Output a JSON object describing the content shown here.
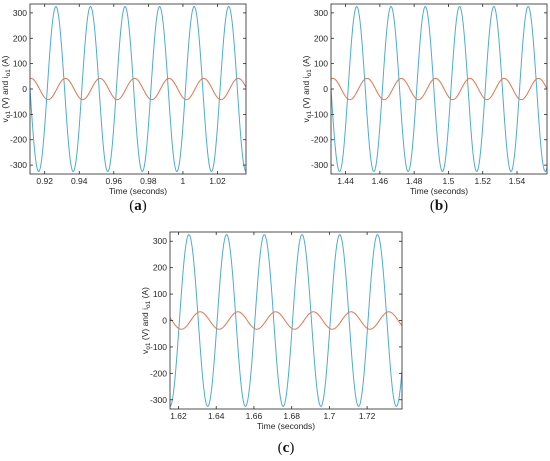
{
  "colors": {
    "voltage": "#4bacd6",
    "current": "#e8744a",
    "axis": "#262626"
  },
  "chart_data": [
    {
      "type": "line",
      "panel_label": "a",
      "xlabel": "Time (seconds)",
      "ylabel": "v_o1 (V) and i_o1 (A)",
      "ylabel_parts": {
        "v": "v",
        "v_sub": "o1",
        "mid": " (V) and ",
        "i": "i",
        "i_sub": "o1",
        "end": " (A)"
      },
      "xlim": [
        0.9115,
        1.0365
      ],
      "ylim": [
        -335,
        335
      ],
      "xticks": [
        0.92,
        0.94,
        0.96,
        0.98,
        1,
        1.02
      ],
      "xtick_labels": [
        "0.92",
        "0.94",
        "0.96",
        "0.98",
        "1",
        "1.02"
      ],
      "yticks": [
        -300,
        -200,
        -100,
        0,
        100,
        200,
        300
      ],
      "ytick_labels": [
        "-300",
        "-200",
        "-100",
        "0",
        "100",
        "200",
        "300"
      ],
      "grid": false,
      "series": [
        {
          "kind": "sine",
          "amplitude": 325,
          "frequency_hz": 50,
          "peak_time": 0.9265,
          "color_key": "voltage"
        },
        {
          "kind": "sine",
          "amplitude": 42,
          "frequency_hz": 50,
          "peak_time": 0.912,
          "color_key": "current"
        }
      ]
    },
    {
      "type": "line",
      "panel_label": "b",
      "xlabel": "Time (seconds)",
      "ylabel": "v_o1 (V) and i_o1 (A)",
      "ylabel_parts": {
        "v": "v",
        "v_sub": "o1",
        "mid": " (V) and ",
        "i": "i",
        "i_sub": "o1",
        "end": " (A)"
      },
      "xlim": [
        1.4315,
        1.5575
      ],
      "ylim": [
        -335,
        335
      ],
      "xticks": [
        1.44,
        1.46,
        1.48,
        1.5,
        1.52,
        1.54
      ],
      "xtick_labels": [
        "1.44",
        "1.46",
        "1.48",
        "1.5",
        "1.52",
        "1.54"
      ],
      "yticks": [
        -300,
        -200,
        -100,
        0,
        100,
        200,
        300
      ],
      "ytick_labels": [
        "-300",
        "-200",
        "-100",
        "0",
        "100",
        "200",
        "300"
      ],
      "grid": false,
      "series": [
        {
          "kind": "sine",
          "amplitude": 325,
          "frequency_hz": 50,
          "peak_time": 1.4465,
          "color_key": "voltage"
        },
        {
          "kind": "sine",
          "amplitude": 42,
          "frequency_hz": 50,
          "peak_time": 1.4325,
          "color_key": "current"
        }
      ]
    },
    {
      "type": "line",
      "panel_label": "c",
      "xlabel": "Time (seconds)",
      "ylabel": "v_o1 (V) and i_o1 (A)",
      "ylabel_parts": {
        "v": "v",
        "v_sub": "o1",
        "mid": " (V) and ",
        "i": "i",
        "i_sub": "o1",
        "end": " (A)"
      },
      "xlim": [
        1.6155,
        1.7385
      ],
      "ylim": [
        -335,
        335
      ],
      "xticks": [
        1.62,
        1.64,
        1.66,
        1.68,
        1.7,
        1.72
      ],
      "xtick_labels": [
        "1.62",
        "1.64",
        "1.66",
        "1.68",
        "1.7",
        "1.72"
      ],
      "yticks": [
        -300,
        -200,
        -100,
        0,
        100,
        200,
        300
      ],
      "ytick_labels": [
        "-300",
        "-200",
        "-100",
        "0",
        "100",
        "200",
        "300"
      ],
      "grid": false,
      "series": [
        {
          "kind": "sine",
          "amplitude": 325,
          "frequency_hz": 50,
          "peak_time": 1.6255,
          "color_key": "voltage"
        },
        {
          "kind": "sine",
          "amplitude": 33,
          "frequency_hz": 50,
          "peak_time": 1.6315,
          "color_key": "current"
        }
      ]
    }
  ]
}
